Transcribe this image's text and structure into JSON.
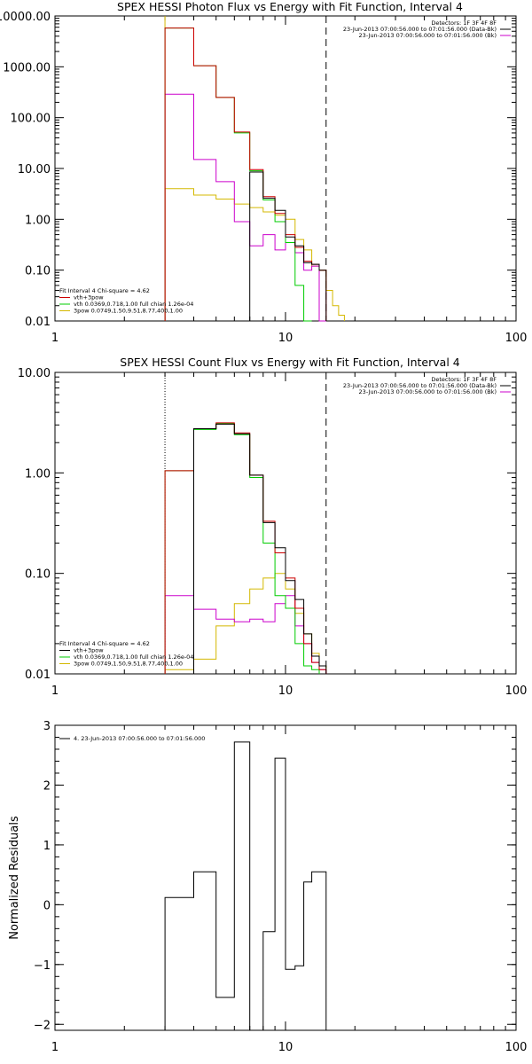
{
  "chart_data": [
    {
      "type": "line",
      "title": "SPEX HESSI Photon Flux vs Energy with Fit Function, Interval 4",
      "xscale": "log",
      "yscale": "log",
      "xlim": [
        1,
        100
      ],
      "ylim": [
        0.01,
        10000
      ],
      "xticks": [
        {
          "v": 1,
          "label": "1"
        },
        {
          "v": 10,
          "label": "10"
        },
        {
          "v": 100,
          "label": "100"
        }
      ],
      "yticks": [
        {
          "v": 0.01,
          "label": "0.01"
        },
        {
          "v": 0.1,
          "label": "0.10"
        },
        {
          "v": 1,
          "label": "1.00"
        },
        {
          "v": 10,
          "label": "10.00"
        },
        {
          "v": 100,
          "label": "100.00"
        },
        {
          "v": 1000,
          "label": "1000.00"
        },
        {
          "v": 10000,
          "label": "10000.00"
        }
      ],
      "vlines": [
        {
          "x": 3,
          "style": "solid",
          "color": "#d4b800"
        },
        {
          "x": 15,
          "style": "dashed",
          "color": "#000000"
        }
      ],
      "legend_right": {
        "lines": [
          "Detectors: 1F 3F 4F 8F",
          "23-Jun-2013 07:00:56.000 to 07:01:56.000 (Data-Bk)",
          "23-Jun-2013 07:00:56.000 to 07:01:56.000 (Bk)"
        ],
        "colors": [
          null,
          "#000000",
          "#cc00cc"
        ]
      },
      "legend_left": {
        "lines": [
          "Fit Interval 4   Chi-square = 4.62",
          "vth+3pow",
          "vth 0.0369,0.718,1.00  full chian 1.26e-04",
          "3pow 0.0749,1.50,9.51,8.77,400,1.00"
        ],
        "colors": [
          null,
          "#cc0000",
          "#00cc00",
          "#d4b800"
        ]
      },
      "series": [
        {
          "color": "#d4b800",
          "edges": [
            3,
            4,
            5,
            6,
            7,
            8,
            9,
            10,
            11,
            12,
            13,
            14,
            15,
            16,
            17,
            18
          ],
          "values": [
            4.0,
            3.0,
            2.5,
            2.0,
            1.7,
            1.4,
            1.2,
            1.0,
            0.4,
            0.25,
            0.12,
            0.1,
            0.04,
            0.02,
            0.013
          ]
        },
        {
          "color": "#cc00cc",
          "edges": [
            3,
            4,
            5,
            6,
            7,
            8,
            9,
            10,
            11,
            12,
            13,
            14,
            15
          ],
          "values": [
            290,
            15,
            5.5,
            0.9,
            0.3,
            0.5,
            0.25,
            0.35,
            0.22,
            0.1,
            0.12,
            0.01
          ]
        },
        {
          "color": "#00cc00",
          "edges": [
            3,
            4,
            5,
            6,
            7,
            8,
            9,
            10,
            11,
            12,
            13
          ],
          "values": [
            5800,
            1050,
            250,
            50,
            9,
            2.4,
            0.9,
            0.35,
            0.05,
            0.01
          ]
        },
        {
          "color": "#cc0000",
          "edges": [
            3,
            4,
            5,
            6,
            7,
            8,
            9,
            10,
            11,
            12,
            13,
            14,
            15
          ],
          "values": [
            5800,
            1050,
            250,
            52,
            9.5,
            2.8,
            1.3,
            0.5,
            0.28,
            0.15,
            0.13,
            0.1
          ]
        },
        {
          "color": "#000000",
          "edges": [
            7,
            8,
            9,
            10,
            11,
            12,
            13,
            14,
            15
          ],
          "values": [
            8.5,
            2.6,
            1.5,
            0.45,
            0.3,
            0.14,
            0.13,
            0.1
          ]
        }
      ]
    },
    {
      "type": "line",
      "title": "SPEX HESSI Count Flux vs Energy with Fit Function, Interval 4",
      "xscale": "log",
      "yscale": "log",
      "xlim": [
        1,
        100
      ],
      "ylim": [
        0.01,
        10
      ],
      "xticks": [
        {
          "v": 1,
          "label": "1"
        },
        {
          "v": 10,
          "label": "10"
        },
        {
          "v": 100,
          "label": "100"
        }
      ],
      "yticks": [
        {
          "v": 0.01,
          "label": "0.01"
        },
        {
          "v": 0.1,
          "label": "0.10"
        },
        {
          "v": 1,
          "label": "1.00"
        },
        {
          "v": 10,
          "label": "10.00"
        }
      ],
      "vlines": [
        {
          "x": 3,
          "style": "dotted",
          "color": "#000000"
        },
        {
          "x": 15,
          "style": "dashed",
          "color": "#000000"
        }
      ],
      "legend_right": {
        "lines": [
          "Detectors: 1F 3F 4F 8F",
          "23-Jun-2013 07:00:56.000 to 07:01:56.000 (Data-Bk)",
          "23-Jun-2013 07:00:56.000 to 07:01:56.000 (Bk)"
        ],
        "colors": [
          null,
          "#000000",
          "#cc00cc"
        ]
      },
      "legend_left": {
        "lines": [
          "Fit Interval 4   Chi-square = 4.62",
          "vth+3pow",
          "vth 0.0369,0.718,1.00  full chian 1.26e-04",
          "3pow 0.0749,1.50,9.51,8.77,400,1.00"
        ],
        "colors": [
          null,
          "#000000",
          "#00cc00",
          "#d4b800"
        ]
      },
      "series": [
        {
          "color": "#d4b800",
          "edges": [
            3,
            4,
            5,
            6,
            7,
            8,
            9,
            10,
            11,
            12,
            13,
            14,
            15
          ],
          "values": [
            0.011,
            0.014,
            0.03,
            0.05,
            0.07,
            0.09,
            0.1,
            0.07,
            0.04,
            0.025,
            0.016,
            0.012
          ]
        },
        {
          "color": "#cc00cc",
          "edges": [
            3,
            4,
            5,
            6,
            7,
            8,
            9,
            10,
            11,
            12,
            13,
            14,
            15
          ],
          "values": [
            0.06,
            0.044,
            0.035,
            0.033,
            0.035,
            0.033,
            0.05,
            0.06,
            0.03,
            0.02,
            0.013,
            0.011
          ]
        },
        {
          "color": "#00cc00",
          "edges": [
            3,
            4,
            5,
            6,
            7,
            8,
            9,
            10,
            11,
            12,
            13,
            14
          ],
          "values": [
            1.05,
            2.7,
            3.1,
            2.4,
            0.9,
            0.2,
            0.06,
            0.045,
            0.02,
            0.012,
            0.011
          ]
        },
        {
          "color": "#cc0000",
          "edges": [
            3,
            4,
            5,
            6,
            7,
            8,
            9,
            10,
            11,
            12,
            13,
            14,
            15
          ],
          "values": [
            1.05,
            2.75,
            3.15,
            2.5,
            0.95,
            0.33,
            0.16,
            0.09,
            0.045,
            0.02,
            0.013,
            0.011
          ]
        },
        {
          "color": "#000000",
          "edges": [
            4,
            5,
            6,
            7,
            8,
            9,
            10,
            11,
            12,
            13,
            14,
            15
          ],
          "values": [
            2.75,
            3.05,
            2.45,
            0.95,
            0.32,
            0.18,
            0.085,
            0.055,
            0.025,
            0.015,
            0.012
          ]
        }
      ]
    },
    {
      "type": "line",
      "title": "",
      "ylabel": "Normalized Residuals",
      "xscale": "log",
      "yscale": "linear",
      "xlim": [
        1,
        100
      ],
      "ylim": [
        -2.1,
        3
      ],
      "xticks": [
        {
          "v": 1,
          "label": "1"
        },
        {
          "v": 10,
          "label": "10"
        },
        {
          "v": 100,
          "label": "100"
        }
      ],
      "yticks": [
        {
          "v": -2,
          "label": "−2"
        },
        {
          "v": -1,
          "label": "−1"
        },
        {
          "v": 0,
          "label": "0"
        },
        {
          "v": 1,
          "label": "1"
        },
        {
          "v": 2,
          "label": "2"
        },
        {
          "v": 3,
          "label": "3"
        }
      ],
      "legend_left": {
        "lines": [
          "4. 23-Jun-2013 07:00:56.000 to 07:01:56.000"
        ],
        "colors": [
          "#000000"
        ]
      },
      "series": [
        {
          "color": "#000000",
          "edges": [
            3,
            4,
            5,
            6,
            7,
            8,
            9,
            10,
            11,
            12,
            13,
            14,
            15
          ],
          "values": [
            0.12,
            0.55,
            -1.55,
            2.72,
            -2.1,
            -0.45,
            2.45,
            -1.08,
            -1.02,
            0.38,
            0.55,
            0.55
          ]
        }
      ]
    }
  ]
}
